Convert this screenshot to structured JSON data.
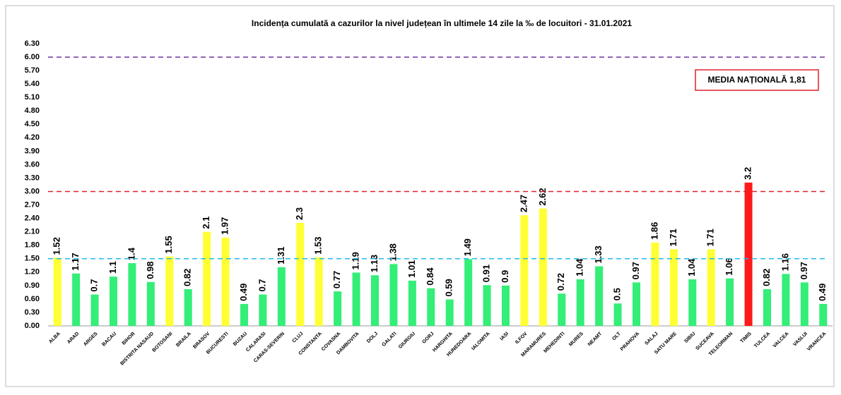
{
  "chart_data": {
    "type": "bar",
    "title": "Incidența cumulată a cazurilor la nivel județean în ultimele 14 zile   la ‰ de locuitori  - 31.01.2021",
    "categories": [
      "ALBA",
      "ARAD",
      "ARGES",
      "BACAU",
      "BIHOR",
      "BISTRITA NASAUD",
      "BOTOSANI",
      "BRAILA",
      "BRASOV",
      "BUCURESTI",
      "BUZAU",
      "CALARASI",
      "CARAS-SEVERIN",
      "CLUJ",
      "CONSTANTA",
      "COVASNA",
      "DAMBOVITA",
      "DOLJ",
      "GALATI",
      "GIURGIU",
      "GORJ",
      "HARGHITA",
      "HUNEDOARA",
      "IALOMITA",
      "IASI",
      "ILFOV",
      "MARAMURES",
      "MEHEDINTI",
      "MURES",
      "NEAMT",
      "OLT",
      "PRAHOVA",
      "SALAJ",
      "SATU MARE",
      "SIBIU",
      "SUCEAVA",
      "TELEORMAN",
      "TIMIS",
      "TULCEA",
      "VALCEA",
      "VASLUI",
      "VRANCEA"
    ],
    "values": [
      1.52,
      1.17,
      0.7,
      1.1,
      1.4,
      0.98,
      1.55,
      0.82,
      2.1,
      1.97,
      0.49,
      0.7,
      1.31,
      2.3,
      1.53,
      0.77,
      1.19,
      1.13,
      1.38,
      1.01,
      0.84,
      0.59,
      1.49,
      0.91,
      0.9,
      2.47,
      2.62,
      0.72,
      1.04,
      1.33,
      0.5,
      0.97,
      1.86,
      1.71,
      1.04,
      1.71,
      1.06,
      3.2,
      0.82,
      1.16,
      0.97,
      0.49
    ],
    "colors": [
      "#ffff33",
      "#33ee77",
      "#33ee77",
      "#33ee77",
      "#33ee77",
      "#33ee77",
      "#ffff33",
      "#33ee77",
      "#ffff33",
      "#ffff33",
      "#33ee77",
      "#33ee77",
      "#33ee77",
      "#ffff33",
      "#ffff33",
      "#33ee77",
      "#33ee77",
      "#33ee77",
      "#33ee77",
      "#33ee77",
      "#33ee77",
      "#33ee77",
      "#33ee77",
      "#33ee77",
      "#33ee77",
      "#ffff33",
      "#ffff33",
      "#33ee77",
      "#33ee77",
      "#33ee77",
      "#33ee77",
      "#33ee77",
      "#ffff33",
      "#ffff33",
      "#33ee77",
      "#ffff33",
      "#33ee77",
      "#ff1a1a",
      "#33ee77",
      "#33ee77",
      "#33ee77",
      "#33ee77"
    ],
    "ylim": [
      0,
      6.3
    ],
    "yticks": [
      {
        "value": 0,
        "label": "0.00"
      },
      {
        "value": 0.3,
        "label": "0.30"
      },
      {
        "value": 0.6,
        "label": "0.60"
      },
      {
        "value": 0.9,
        "label": "0.90"
      },
      {
        "value": 1.2,
        "label": "1.20"
      },
      {
        "value": 1.5,
        "label": "1.50"
      },
      {
        "value": 1.8,
        "label": "1.80"
      },
      {
        "value": 2.1,
        "label": "2.10"
      },
      {
        "value": 2.4,
        "label": "2.40"
      },
      {
        "value": 2.7,
        "label": "2.70"
      },
      {
        "value": 3,
        "label": "3.00"
      },
      {
        "value": 3.3,
        "label": "3.30"
      },
      {
        "value": 3.6,
        "label": "3.60"
      },
      {
        "value": 3.9,
        "label": "3.90"
      },
      {
        "value": 4.2,
        "label": "4.20"
      },
      {
        "value": 4.5,
        "label": "4.50"
      },
      {
        "value": 4.8,
        "label": "4.80"
      },
      {
        "value": 5.1,
        "label": "5.10"
      },
      {
        "value": 5.4,
        "label": "5.40"
      },
      {
        "value": 5.7,
        "label": "5.70"
      },
      {
        "value": 6,
        "label": "6.00"
      },
      {
        "value": 6.3,
        "label": "6.30"
      }
    ],
    "reference_lines": [
      {
        "value": 6,
        "color": "#7030a0"
      },
      {
        "value": 3,
        "color": "#e0202a"
      },
      {
        "value": 1.5,
        "color": "#22b8e8"
      }
    ],
    "annotation": "MEDIA NAȚIONALĂ 1,81",
    "grid": false
  }
}
